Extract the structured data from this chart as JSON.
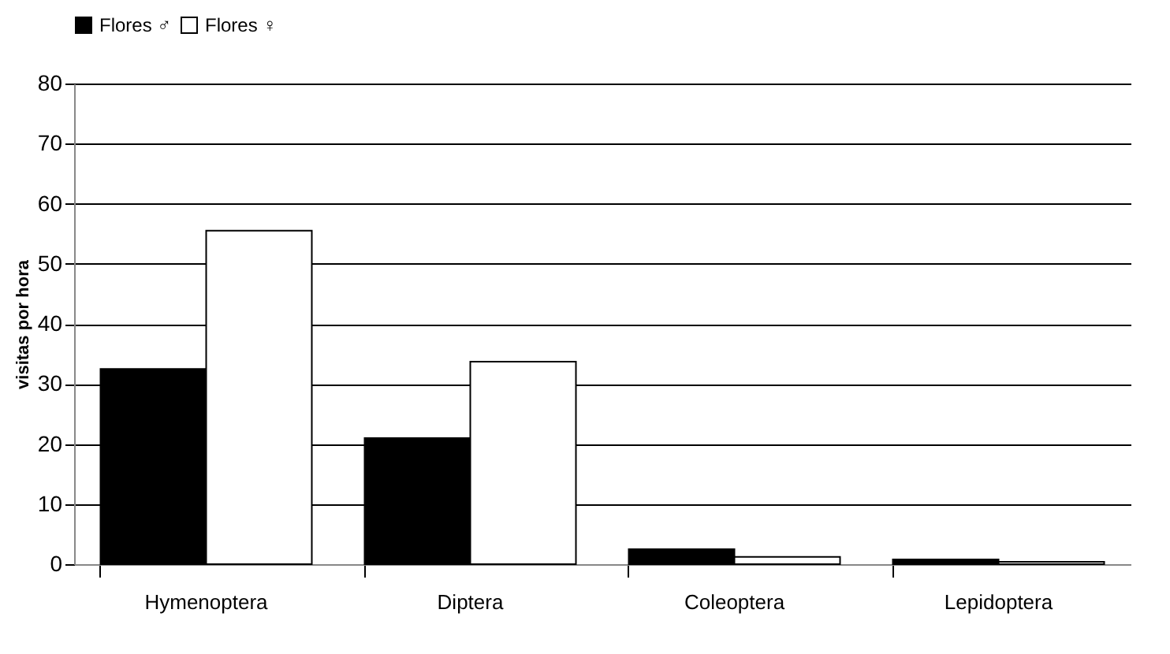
{
  "chart_data": {
    "type": "bar",
    "ylabel": "visitas por hora",
    "categories": [
      "Hymenoptera",
      "Diptera",
      "Coleoptera",
      "Lepidoptera"
    ],
    "series": [
      {
        "name": "Flores ♂",
        "color": "#000000",
        "values": [
          32.5,
          21,
          2.5,
          0.8
        ]
      },
      {
        "name": "Flores ♀",
        "color": "#ffffff",
        "values": [
          55.5,
          33.7,
          1.2,
          0.4
        ]
      }
    ],
    "ylim": [
      0,
      80
    ],
    "yticks": [
      0,
      10,
      20,
      30,
      40,
      50,
      60,
      70,
      80
    ],
    "grid": "y",
    "legend": "top"
  }
}
